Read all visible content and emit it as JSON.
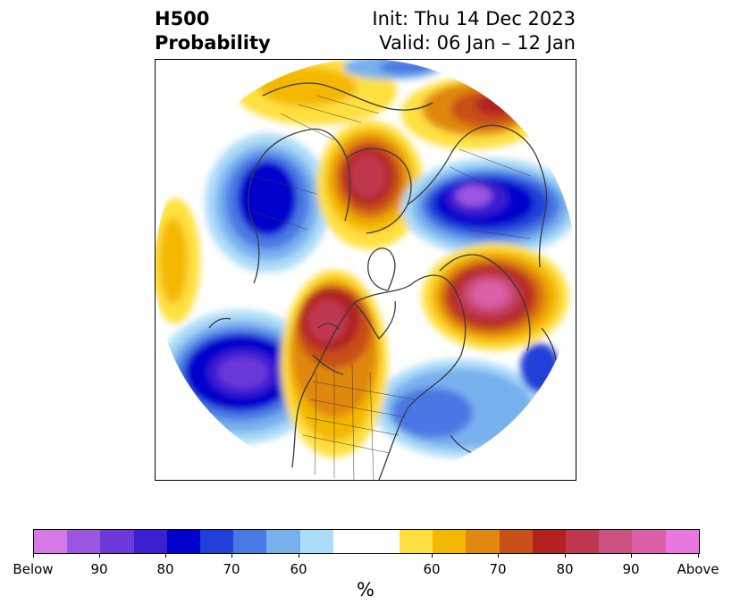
{
  "header": {
    "title_line1": "H500",
    "title_line2": "Probability",
    "init_text": "Init: Thu 14 Dec 2023",
    "valid_text": "Valid: 06 Jan – 12 Jan"
  },
  "colorbar": {
    "colors": [
      "#d678e6",
      "#9b55e0",
      "#6b39d8",
      "#3a1fd0",
      "#0000cc",
      "#2240d8",
      "#4a78e4",
      "#78b0ee",
      "#acdcf8",
      "#ffffff",
      "#ffffff",
      "#ffe040",
      "#f4b800",
      "#e08810",
      "#c85018",
      "#b22020",
      "#c03850",
      "#cc5080",
      "#dc60a8",
      "#e878e0"
    ],
    "tick_labels": [
      "Below",
      "90",
      "80",
      "70",
      "60",
      "60",
      "70",
      "80",
      "90",
      "Above"
    ],
    "unit_label": "%"
  },
  "map": {
    "projection": "north-polar-stereographic",
    "shading": "500 hPa height anomaly probability",
    "palette": {
      "below_strong": "#6b39d8",
      "below_mid": "#0000cc",
      "below_weak": "#78b0ee",
      "below_light": "#acdcf8",
      "above_light": "#ffe040",
      "above_mid": "#e08810",
      "above_strong": "#b22020",
      "above_extreme": "#dc60a8"
    }
  }
}
